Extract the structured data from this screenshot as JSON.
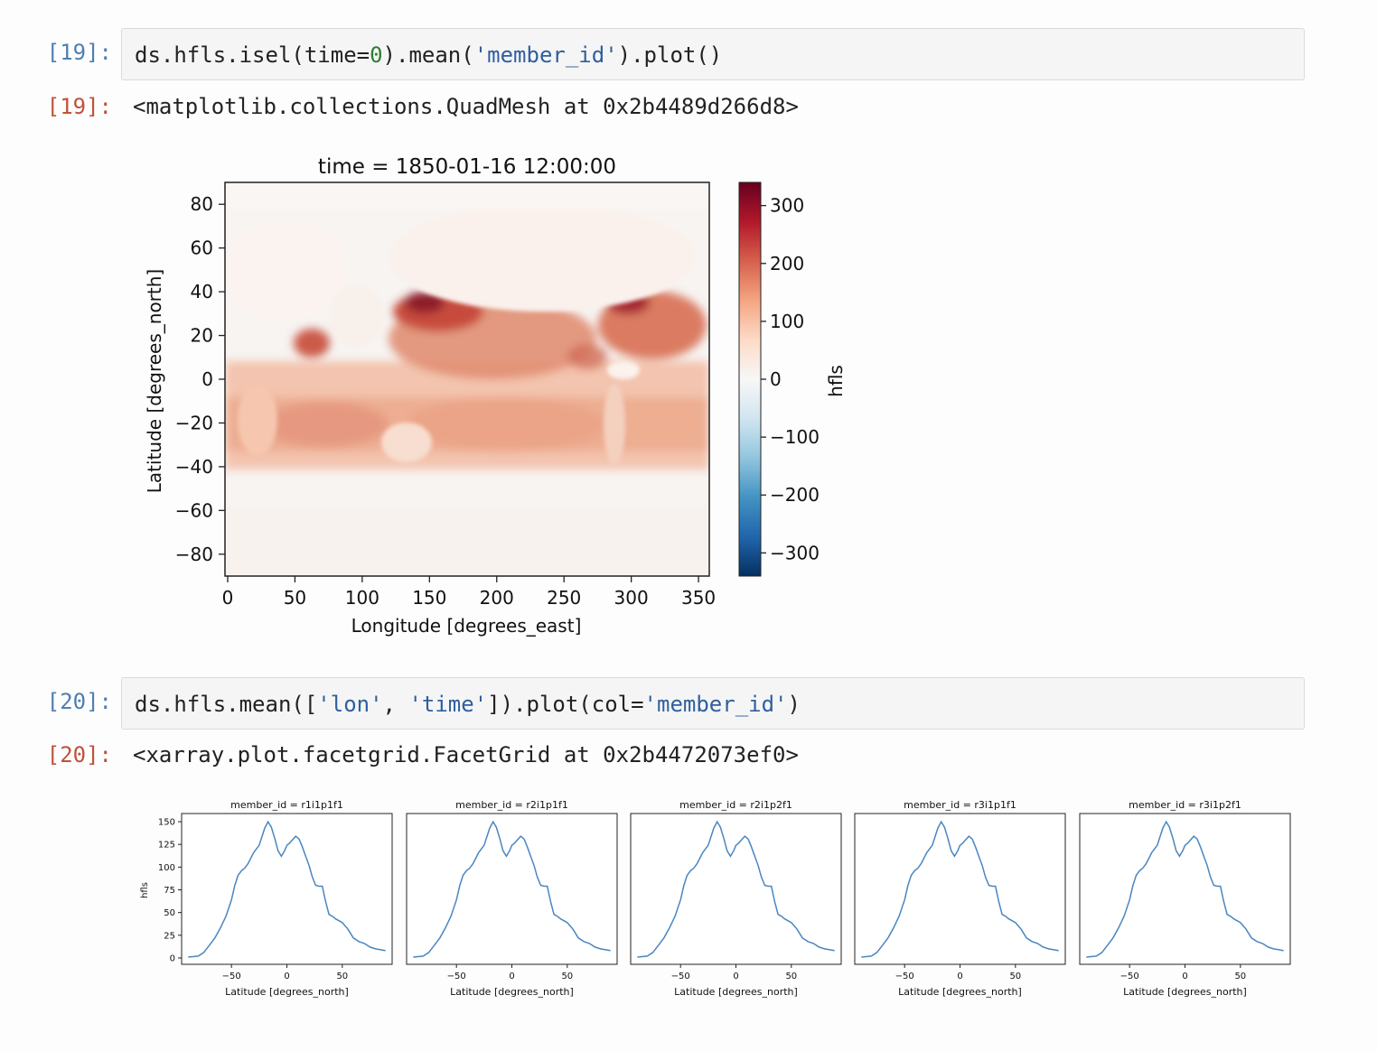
{
  "cells": [
    {
      "in_prompt": "[19]:",
      "code": {
        "p1": "ds.hfls.isel(time=",
        "num": "0",
        "p2": ").mean(",
        "str": "'member_id'",
        "p3": ").plot()"
      },
      "out_prompt": "[19]:",
      "output_text": "<matplotlib.collections.QuadMesh at 0x2b4489d266d8>"
    },
    {
      "in_prompt": "[20]:",
      "code": {
        "p1": "ds.hfls.mean([",
        "str1": "'lon'",
        "p2": ", ",
        "str2": "'time'",
        "p3": "]).plot(col=",
        "str3": "'member_id'",
        "p4": ")"
      },
      "out_prompt": "[20]:",
      "output_text": "<xarray.plot.facetgrid.FacetGrid at 0x2b4472073ef0>"
    }
  ],
  "chart_data": [
    {
      "type": "heatmap",
      "title": "time = 1850-01-16 12:00:00",
      "xlabel": "Longitude [degrees_east]",
      "ylabel": "Latitude [degrees_north]",
      "xlim": [
        -2,
        358
      ],
      "ylim": [
        -90,
        90
      ],
      "xticks": [
        0,
        50,
        100,
        150,
        200,
        250,
        300,
        350
      ],
      "yticks": [
        -80,
        -60,
        -40,
        -20,
        0,
        20,
        40,
        60,
        80
      ],
      "colorbar": {
        "label": "hfls",
        "range": [
          -340,
          340
        ],
        "ticks": [
          -300,
          -200,
          -100,
          0,
          100,
          200,
          300
        ],
        "colormap": "RdBu_r"
      }
    },
    {
      "type": "line",
      "ylabel": "hfls",
      "xlabel": "Latitude [degrees_north]",
      "xlim": [
        -95,
        95
      ],
      "ylim": [
        -7,
        159
      ],
      "xticks": [
        -50,
        0,
        50
      ],
      "yticks": [
        0,
        25,
        50,
        75,
        100,
        125,
        150
      ],
      "line_color": "#4a86c0",
      "x": [
        -89,
        -80,
        -75,
        -70,
        -65,
        -60,
        -55,
        -50,
        -47,
        -44,
        -41,
        -38,
        -35,
        -30,
        -25,
        -20,
        -17,
        -14,
        -11,
        -8,
        -5,
        -2,
        0,
        2,
        5,
        8,
        11,
        14,
        17,
        20,
        23,
        26,
        29,
        32,
        35,
        38,
        41,
        44,
        47,
        50,
        55,
        60,
        65,
        70,
        75,
        80,
        85,
        89
      ],
      "panels": [
        {
          "title": "member_id = r1i1p1f1",
          "values": [
            1,
            2,
            6,
            14,
            22,
            33,
            46,
            64,
            80,
            91,
            96,
            99,
            104,
            116,
            124,
            143,
            150,
            144,
            132,
            118,
            112,
            118,
            124,
            126,
            130,
            134,
            131,
            122,
            112,
            102,
            89,
            80,
            79,
            79,
            62,
            48,
            46,
            43,
            41,
            39,
            32,
            22,
            18,
            16,
            12,
            10,
            9,
            8
          ]
        },
        {
          "title": "member_id = r2i1p1f1",
          "values": [
            1,
            2,
            6,
            14,
            22,
            33,
            46,
            64,
            80,
            91,
            96,
            99,
            104,
            116,
            124,
            143,
            150,
            144,
            132,
            118,
            112,
            118,
            124,
            126,
            130,
            134,
            131,
            122,
            112,
            102,
            89,
            80,
            79,
            79,
            62,
            48,
            46,
            43,
            41,
            39,
            32,
            22,
            18,
            16,
            12,
            10,
            9,
            8
          ]
        },
        {
          "title": "member_id = r2i1p2f1",
          "values": [
            1,
            2,
            6,
            14,
            22,
            33,
            46,
            64,
            80,
            91,
            96,
            99,
            104,
            116,
            124,
            143,
            150,
            144,
            132,
            118,
            112,
            118,
            124,
            126,
            130,
            134,
            131,
            122,
            112,
            102,
            89,
            80,
            79,
            79,
            62,
            48,
            46,
            43,
            41,
            39,
            32,
            22,
            18,
            16,
            12,
            10,
            9,
            8
          ]
        },
        {
          "title": "member_id = r3i1p1f1",
          "values": [
            1,
            2,
            6,
            14,
            22,
            33,
            46,
            64,
            80,
            91,
            96,
            99,
            104,
            116,
            124,
            143,
            150,
            144,
            132,
            118,
            112,
            118,
            124,
            126,
            130,
            134,
            131,
            122,
            112,
            102,
            89,
            80,
            79,
            79,
            62,
            48,
            46,
            43,
            41,
            39,
            32,
            22,
            18,
            16,
            12,
            10,
            9,
            8
          ]
        },
        {
          "title": "member_id = r3i1p2f1",
          "values": [
            1,
            2,
            6,
            14,
            22,
            33,
            46,
            64,
            80,
            91,
            96,
            99,
            104,
            116,
            124,
            143,
            150,
            144,
            132,
            118,
            112,
            118,
            124,
            126,
            130,
            134,
            131,
            122,
            112,
            102,
            89,
            80,
            79,
            79,
            62,
            48,
            46,
            43,
            41,
            39,
            32,
            22,
            18,
            16,
            12,
            10,
            9,
            8
          ]
        }
      ]
    }
  ]
}
